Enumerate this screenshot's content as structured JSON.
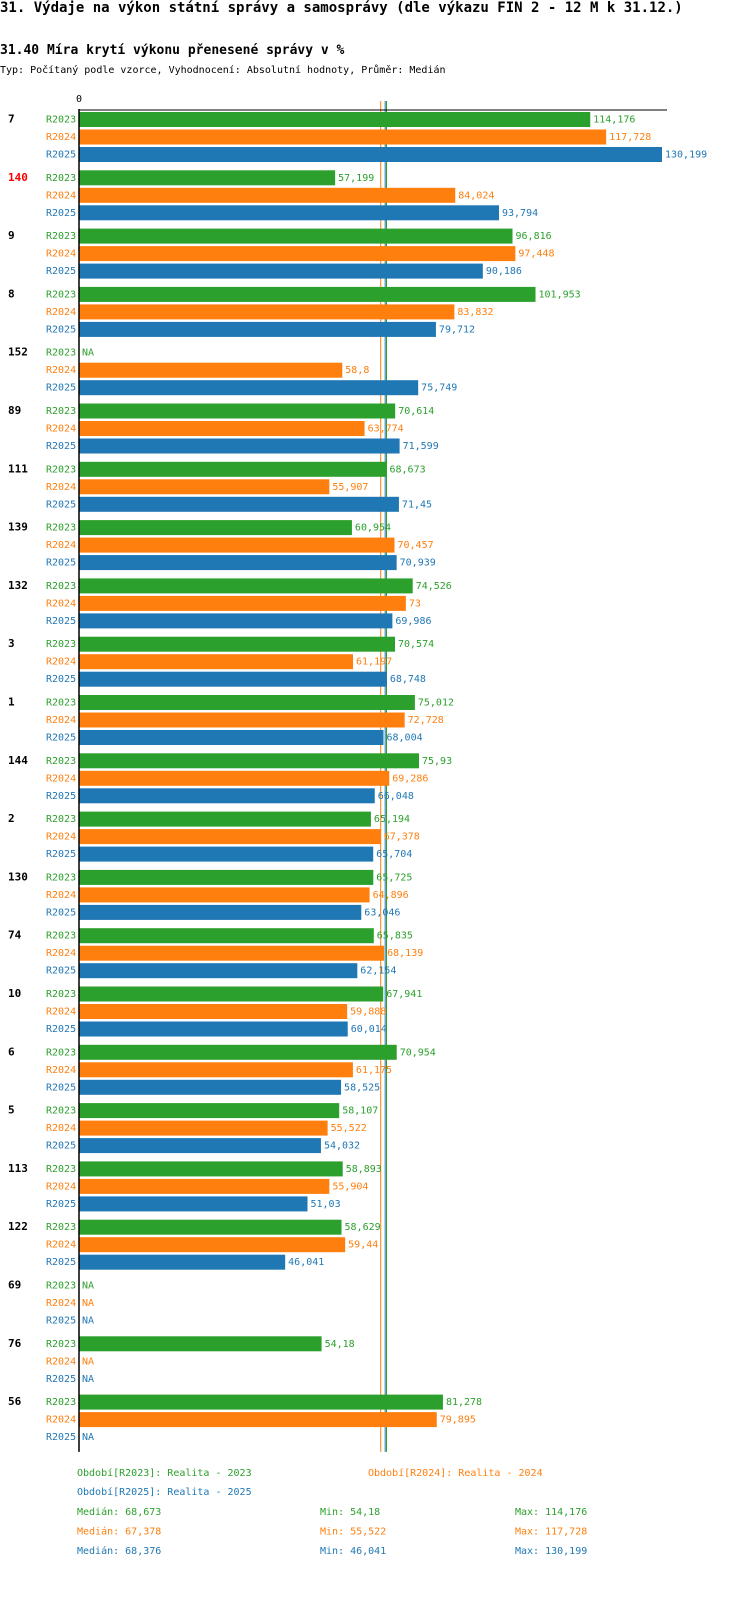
{
  "header": {
    "title": "31. Výdaje na výkon státní správy a samosprávy (dle výkazu FIN 2 - 12 M k 31.12.)",
    "subtitle": "31.40 Míra krytí výkonu přenesené správy v %",
    "info": "Typ: Počítaný podle vzorce, Vyhodnocení: Absolutní hodnoty, Průměr: Medián"
  },
  "chart_data": {
    "type": "bar",
    "orientation": "horizontal",
    "x_axis_label": "0",
    "xlim": [
      0,
      130.199
    ],
    "colors": {
      "R2023": "#2ca02c",
      "R2024": "#ff7f0e",
      "R2025": "#1f77b4",
      "highlight": "#ff0000"
    },
    "series_names": [
      "R2023",
      "R2024",
      "R2025"
    ],
    "groups": [
      {
        "label": "7",
        "highlight": false,
        "values": [
          "114,176",
          "117,728",
          "130,199"
        ]
      },
      {
        "label": "140",
        "highlight": true,
        "values": [
          "57,199",
          "84,024",
          "93,794"
        ]
      },
      {
        "label": "9",
        "highlight": false,
        "values": [
          "96,816",
          "97,448",
          "90,186"
        ]
      },
      {
        "label": "8",
        "highlight": false,
        "values": [
          "101,953",
          "83,832",
          "79,712"
        ]
      },
      {
        "label": "152",
        "highlight": false,
        "values": [
          "NA",
          "58,8",
          "75,749"
        ]
      },
      {
        "label": "89",
        "highlight": false,
        "values": [
          "70,614",
          "63,774",
          "71,599"
        ]
      },
      {
        "label": "111",
        "highlight": false,
        "values": [
          "68,673",
          "55,907",
          "71,45"
        ]
      },
      {
        "label": "139",
        "highlight": false,
        "values": [
          "60,954",
          "70,457",
          "70,939"
        ]
      },
      {
        "label": "132",
        "highlight": false,
        "values": [
          "74,526",
          "73",
          "69,986"
        ]
      },
      {
        "label": "3",
        "highlight": false,
        "values": [
          "70,574",
          "61,197",
          "68,748"
        ]
      },
      {
        "label": "1",
        "highlight": false,
        "values": [
          "75,012",
          "72,728",
          "68,004"
        ]
      },
      {
        "label": "144",
        "highlight": false,
        "values": [
          "75,93",
          "69,286",
          "66,048"
        ]
      },
      {
        "label": "2",
        "highlight": false,
        "values": [
          "65,194",
          "67,378",
          "65,704"
        ]
      },
      {
        "label": "130",
        "highlight": false,
        "values": [
          "65,725",
          "64,896",
          "63,046"
        ]
      },
      {
        "label": "74",
        "highlight": false,
        "values": [
          "65,835",
          "68,139",
          "62,154"
        ]
      },
      {
        "label": "10",
        "highlight": false,
        "values": [
          "67,941",
          "59,888",
          "60,014"
        ]
      },
      {
        "label": "6",
        "highlight": false,
        "values": [
          "70,954",
          "61,175",
          "58,525"
        ]
      },
      {
        "label": "5",
        "highlight": false,
        "values": [
          "58,107",
          "55,522",
          "54,032"
        ]
      },
      {
        "label": "113",
        "highlight": false,
        "values": [
          "58,893",
          "55,904",
          "51,03"
        ]
      },
      {
        "label": "122",
        "highlight": false,
        "values": [
          "58,629",
          "59,44",
          "46,041"
        ]
      },
      {
        "label": "69",
        "highlight": false,
        "values": [
          "NA",
          "NA",
          "NA"
        ]
      },
      {
        "label": "76",
        "highlight": false,
        "values": [
          "54,18",
          "NA",
          "NA"
        ]
      },
      {
        "label": "56",
        "highlight": false,
        "values": [
          "81,278",
          "79,895",
          "NA"
        ]
      }
    ],
    "median_lines": [
      {
        "series": "R2023",
        "value": 68.673
      },
      {
        "series": "R2024",
        "value": 67.378
      },
      {
        "series": "R2025",
        "value": 68.376
      }
    ],
    "legend": [
      {
        "series": "R2023",
        "text": "Období[R2023]: Realita - 2023"
      },
      {
        "series": "R2024",
        "text": "Období[R2024]: Realita - 2024"
      },
      {
        "series": "R2025",
        "text": "Období[R2025]: Realita - 2025"
      }
    ],
    "stats": [
      {
        "series": "R2023",
        "median": "Medián: 68,673",
        "min": "Min: 54,18",
        "max": "Max: 114,176"
      },
      {
        "series": "R2024",
        "median": "Medián: 67,378",
        "min": "Min: 55,522",
        "max": "Max: 117,728"
      },
      {
        "series": "R2025",
        "median": "Medián: 68,376",
        "min": "Min: 46,041",
        "max": "Max: 130,199"
      }
    ]
  }
}
